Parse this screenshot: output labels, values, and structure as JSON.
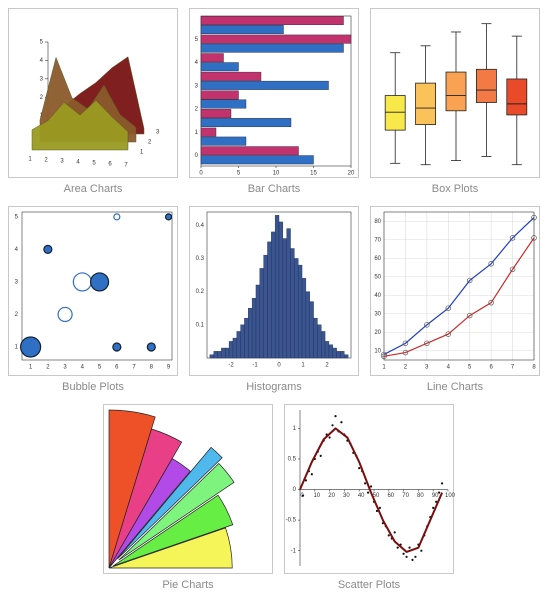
{
  "chart_data": [
    {
      "type": "area3d",
      "title": "Area Charts",
      "categories": [
        1,
        2,
        3,
        4,
        5,
        6,
        7
      ],
      "ylim": [
        0,
        5
      ],
      "yticks": [
        1,
        2,
        3,
        4,
        5
      ],
      "zticks": [
        1,
        2,
        3
      ],
      "series": [
        {
          "color": "#7a1414",
          "values": [
            0.6,
            1.5,
            2.2,
            2.8,
            3.6,
            4.2,
            0.3
          ]
        },
        {
          "color": "#8b5a2b",
          "values": [
            1.2,
            4.6,
            2.4,
            1.8,
            3.1,
            1.5,
            0.8
          ]
        },
        {
          "color": "#9a9a22",
          "values": [
            1.1,
            1.6,
            2.6,
            1.9,
            2.7,
            1.8,
            1.0
          ]
        }
      ]
    },
    {
      "type": "barh",
      "title": "Bar Charts",
      "y": [
        0,
        0.8,
        1.6,
        2.4,
        3.2,
        4.0,
        4.8,
        5.6
      ],
      "xlim": [
        0,
        20
      ],
      "xticks": [
        0,
        5,
        10,
        15,
        20
      ],
      "ylim": [
        -0.45,
        6
      ],
      "yticks": [
        0,
        1,
        2,
        3,
        4,
        5
      ],
      "series": [
        {
          "color": "#2f6fc4",
          "values": [
            15,
            6,
            12,
            6,
            17,
            5,
            19,
            11
          ]
        },
        {
          "color": "#c2336e",
          "values": [
            13,
            2,
            4,
            5,
            8,
            3,
            20,
            19
          ]
        }
      ]
    },
    {
      "type": "box",
      "title": "Box Plots",
      "ylim": [
        0,
        11.5
      ],
      "colors": [
        "#f9e84a",
        "#fbc25a",
        "#f9a253",
        "#f47a45",
        "#e94a2a"
      ],
      "boxes": [
        [
          0.7,
          3.1,
          4.4,
          5.6,
          8.7
        ],
        [
          0.6,
          3.5,
          4.7,
          6.5,
          9.2
        ],
        [
          0.9,
          4.5,
          5.6,
          7.3,
          10.2
        ],
        [
          1.2,
          5.1,
          6.0,
          7.5,
          10.8
        ],
        [
          0.6,
          4.2,
          5.0,
          6.8,
          9.9
        ]
      ]
    },
    {
      "type": "bubble",
      "title": "Bubble Plots",
      "xlim": [
        0.5,
        9.2
      ],
      "xticks": [
        1,
        2,
        3,
        4,
        5,
        6,
        7,
        8,
        9
      ],
      "ylim": [
        0.6,
        5.15
      ],
      "yticks": [
        1,
        2,
        3,
        4,
        5
      ],
      "color": "#2f6fc4",
      "x": [
        1,
        2,
        3,
        4,
        5,
        6,
        8,
        9,
        6
      ],
      "y": [
        1,
        4,
        2,
        3,
        3,
        1,
        1,
        5,
        5
      ],
      "size": [
        10,
        4,
        7,
        9,
        9,
        4,
        4,
        3,
        3
      ],
      "filled": [
        true,
        true,
        false,
        false,
        true,
        true,
        true,
        true,
        false
      ]
    },
    {
      "type": "histogram",
      "title": "Histograms",
      "color": "#3a5590",
      "xlim": [
        -3,
        3
      ],
      "xticks": [
        -2,
        -1,
        0,
        1,
        2
      ],
      "ylim": [
        0,
        0.44
      ],
      "yticks": [
        0.1,
        0.2,
        0.3,
        0.4
      ],
      "bins": [
        -2.88,
        -2.72,
        -2.56,
        -2.4,
        -2.24,
        -2.08,
        -1.92,
        -1.76,
        -1.6,
        -1.44,
        -1.28,
        -1.12,
        -0.96,
        -0.8,
        -0.64,
        -0.48,
        -0.32,
        -0.16,
        0,
        0.16,
        0.32,
        0.48,
        0.64,
        0.8,
        0.96,
        1.12,
        1.28,
        1.44,
        1.6,
        1.76,
        1.92,
        2.08,
        2.24,
        2.4,
        2.56,
        2.72,
        2.88
      ],
      "values": [
        0.01,
        0.02,
        0.02,
        0.03,
        0.03,
        0.05,
        0.06,
        0.08,
        0.1,
        0.12,
        0.15,
        0.18,
        0.22,
        0.27,
        0.31,
        0.35,
        0.38,
        0.43,
        0.41,
        0.36,
        0.39,
        0.33,
        0.3,
        0.28,
        0.24,
        0.2,
        0.17,
        0.12,
        0.1,
        0.08,
        0.05,
        0.04,
        0.03,
        0.02,
        0.02,
        0.01
      ]
    },
    {
      "type": "line",
      "title": "Line Charts",
      "grid": true,
      "x": [
        1,
        2,
        3,
        4,
        5,
        6,
        7,
        8
      ],
      "xlim": [
        1,
        8
      ],
      "xticks": [
        1,
        2,
        3,
        4,
        5,
        6,
        7,
        8
      ],
      "ylim": [
        5,
        85
      ],
      "yticks": [
        10,
        20,
        30,
        40,
        50,
        60,
        70,
        80
      ],
      "series": [
        {
          "color": "#1f3fc4",
          "values": [
            8,
            14,
            24,
            33,
            48,
            57,
            71,
            82
          ]
        },
        {
          "color": "#d02a2a",
          "values": [
            7,
            9,
            14,
            19,
            29,
            36,
            54,
            71
          ]
        }
      ]
    },
    {
      "type": "fan",
      "title": "Pie Charts",
      "values": [
        17,
        13,
        10,
        6,
        10,
        15,
        19
      ],
      "radius": [
        1,
        0.92,
        0.8,
        0.92,
        0.88,
        0.8,
        0.78
      ],
      "explode": [
        0,
        0,
        0,
        0.08,
        0.08,
        0.03,
        0
      ],
      "colors": [
        "#ee5128",
        "#e83f86",
        "#b24ae8",
        "#4fb8ec",
        "#7ef47e",
        "#66ee44",
        "#f5f55a"
      ]
    },
    {
      "type": "scatter",
      "title": "Scatter Plots",
      "xlim": [
        0,
        100
      ],
      "xticks": [
        0,
        10,
        20,
        30,
        40,
        50,
        60,
        70,
        80,
        90,
        100
      ],
      "ylim": [
        -1.25,
        1.3
      ],
      "yticks": [
        -1,
        -0.5,
        0,
        0.5,
        1
      ],
      "x": [
        2,
        4,
        6,
        8,
        10,
        12,
        14,
        16,
        18,
        20,
        22,
        24,
        26,
        28,
        30,
        32,
        34,
        36,
        38,
        40,
        42,
        44,
        46,
        48,
        50,
        52,
        54,
        56,
        58,
        60,
        62,
        64,
        66,
        68,
        70,
        72,
        74,
        76,
        78,
        80,
        82,
        84,
        86,
        88,
        90,
        92,
        94,
        96
      ],
      "y": [
        -0.1,
        0.15,
        0.3,
        0.25,
        0.5,
        0.62,
        0.55,
        0.8,
        0.9,
        0.85,
        1.05,
        1.2,
        0.95,
        1.1,
        0.9,
        0.8,
        0.75,
        0.6,
        0.55,
        0.35,
        0.3,
        0.1,
        -0.05,
        0.05,
        -0.2,
        -0.35,
        -0.3,
        -0.55,
        -0.6,
        -0.75,
        -0.8,
        -0.7,
        -0.95,
        -0.9,
        -1.05,
        -1.1,
        -0.95,
        -1.15,
        -1.1,
        -0.9,
        -1.0,
        -0.75,
        -0.6,
        -0.45,
        -0.3,
        -0.2,
        -0.05,
        0.1
      ],
      "fit": {
        "color": "#7a0d0d",
        "x": [
          0,
          8,
          16,
          24,
          32,
          40,
          48,
          56,
          64,
          72,
          80,
          88,
          96
        ],
        "y": [
          0,
          0.45,
          0.82,
          1.0,
          0.85,
          0.45,
          -0.05,
          -0.5,
          -0.85,
          -1.02,
          -0.95,
          -0.5,
          -0.05
        ]
      }
    }
  ]
}
